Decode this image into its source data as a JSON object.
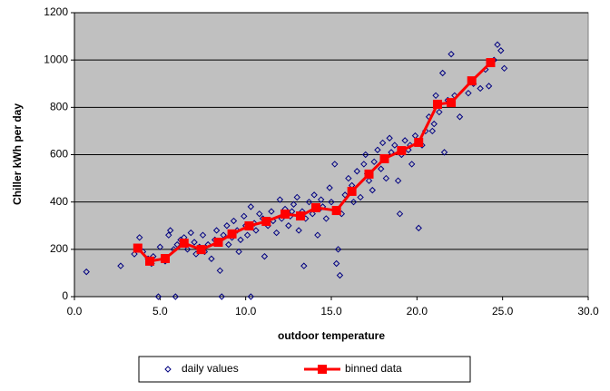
{
  "chart_data": {
    "type": "scatter",
    "x_label": "outdoor temperature",
    "y_label": "Chiller kWh per day",
    "xlim": [
      0,
      30
    ],
    "xticks": [
      {
        "value": 0,
        "label": "0.0"
      },
      {
        "value": 5,
        "label": "5.0"
      },
      {
        "value": 10,
        "label": "10.0"
      },
      {
        "value": 15,
        "label": "15.0"
      },
      {
        "value": 20,
        "label": "20.0"
      },
      {
        "value": 25,
        "label": "25.0"
      },
      {
        "value": 30,
        "label": "30.0"
      }
    ],
    "ylim": [
      0,
      1200
    ],
    "yticks": [
      0,
      200,
      400,
      600,
      800,
      1000,
      1200
    ],
    "grid": true,
    "plot_background": "#c0c0c0",
    "legend": "bottom",
    "series": [
      {
        "name": "daily values",
        "color": "#000080",
        "marker": "diamond",
        "line": false,
        "x": [
          0.7,
          2.7,
          3.5,
          3.8,
          4.0,
          4.3,
          4.5,
          4.6,
          4.9,
          5.0,
          5.3,
          5.5,
          5.6,
          5.9,
          6.0,
          6.2,
          6.4,
          6.6,
          6.8,
          7.0,
          7.1,
          7.3,
          7.5,
          7.6,
          7.8,
          8.0,
          8.2,
          8.3,
          8.6,
          8.7,
          8.9,
          9.0,
          9.2,
          9.3,
          9.5,
          9.7,
          9.9,
          10.0,
          10.1,
          10.3,
          10.3,
          10.5,
          10.6,
          10.8,
          11.0,
          11.1,
          11.3,
          11.5,
          11.6,
          11.8,
          12.0,
          12.1,
          12.3,
          12.5,
          12.6,
          12.8,
          13.0,
          13.1,
          13.3,
          13.4,
          13.5,
          13.7,
          13.9,
          14.0,
          14.2,
          14.4,
          14.5,
          14.7,
          14.9,
          15.0,
          15.2,
          15.3,
          15.5,
          15.6,
          15.8,
          16.0,
          16.2,
          16.3,
          16.5,
          16.7,
          16.9,
          17.0,
          17.2,
          17.4,
          17.5,
          17.7,
          17.9,
          18.0,
          18.2,
          18.4,
          18.5,
          18.7,
          18.9,
          19.0,
          19.1,
          19.3,
          19.5,
          19.7,
          19.9,
          20.1,
          20.3,
          20.5,
          20.7,
          20.9,
          21.1,
          21.3,
          21.5,
          21.6,
          21.8,
          22.0,
          22.2,
          22.5,
          23.0,
          23.3,
          23.7,
          24.0,
          24.2,
          24.5,
          24.7,
          24.9,
          25.1,
          5.8,
          8.5,
          9.6,
          14.3,
          15.4,
          17.1,
          19.6,
          21.0,
          12.7
        ],
        "values": [
          105,
          130,
          180,
          250,
          190,
          160,
          140,
          170,
          0,
          210,
          150,
          260,
          280,
          0,
          220,
          240,
          250,
          200,
          270,
          230,
          180,
          210,
          260,
          190,
          220,
          160,
          240,
          280,
          0,
          260,
          300,
          220,
          250,
          320,
          280,
          240,
          340,
          300,
          260,
          0,
          380,
          310,
          280,
          350,
          330,
          170,
          300,
          360,
          320,
          270,
          410,
          330,
          370,
          300,
          340,
          390,
          420,
          280,
          360,
          130,
          330,
          400,
          350,
          430,
          260,
          410,
          380,
          330,
          460,
          400,
          560,
          140,
          90,
          350,
          430,
          500,
          470,
          400,
          530,
          420,
          560,
          600,
          490,
          450,
          570,
          620,
          540,
          650,
          500,
          670,
          610,
          640,
          490,
          350,
          600,
          660,
          620,
          560,
          680,
          290,
          640,
          700,
          760,
          700,
          850,
          780,
          945,
          610,
          830,
          1025,
          850,
          760,
          860,
          900,
          880,
          960,
          890,
          1000,
          1065,
          1040,
          965,
          200,
          110,
          190,
          370,
          200,
          520,
          640,
          730,
          360
        ]
      },
      {
        "name": "binned data",
        "color": "#ff0000",
        "marker": "square",
        "line": true,
        "x": [
          3.7,
          4.4,
          5.3,
          6.4,
          7.4,
          8.4,
          9.2,
          10.2,
          11.2,
          12.3,
          13.2,
          14.1,
          15.3,
          16.2,
          17.2,
          18.1,
          19.1,
          20.1,
          21.2,
          22.0,
          23.2,
          24.3
        ],
        "values": [
          205,
          150,
          161,
          226,
          199,
          230,
          265,
          299,
          318,
          349,
          341,
          376,
          364,
          445,
          518,
          583,
          617,
          652,
          813,
          820,
          912,
          989
        ]
      }
    ]
  }
}
